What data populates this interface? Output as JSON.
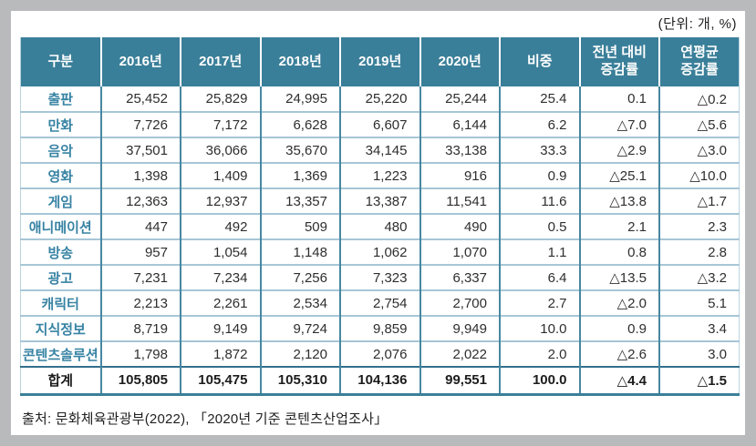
{
  "unit_label": "(단위: 개,  %)",
  "source": "출처:  문화체육관광부(2022), 「2020년  기준  콘텐츠산업조사」",
  "colors": {
    "header_bg": "#3a7f99",
    "header_text": "#ffffff",
    "label_text": "#3783a3",
    "vertical_line": "#4887a2",
    "horizontal_line": "#a6c6d6",
    "total_divider": "#336f8c",
    "bottom_border": "#3a7f99",
    "frame_gray": "#b9babc"
  },
  "table": {
    "headers": [
      "구분",
      "2016년",
      "2017년",
      "2018년",
      "2019년",
      "2020년",
      "비중",
      "전년  대비\n증감률",
      "연평균\n증감률"
    ],
    "rows": [
      {
        "label": "출판",
        "values": [
          "25,452",
          "25,829",
          "24,995",
          "25,220",
          "25,244",
          "25.4",
          "0.1",
          "△0.2"
        ],
        "is_total": false
      },
      {
        "label": "만화",
        "values": [
          "7,726",
          "7,172",
          "6,628",
          "6,607",
          "6,144",
          "6.2",
          "△7.0",
          "△5.6"
        ],
        "is_total": false
      },
      {
        "label": "음악",
        "values": [
          "37,501",
          "36,066",
          "35,670",
          "34,145",
          "33,138",
          "33.3",
          "△2.9",
          "△3.0"
        ],
        "is_total": false
      },
      {
        "label": "영화",
        "values": [
          "1,398",
          "1,409",
          "1,369",
          "1,223",
          "916",
          "0.9",
          "△25.1",
          "△10.0"
        ],
        "is_total": false
      },
      {
        "label": "게임",
        "values": [
          "12,363",
          "12,937",
          "13,357",
          "13,387",
          "11,541",
          "11.6",
          "△13.8",
          "△1.7"
        ],
        "is_total": false
      },
      {
        "label": "애니메이션",
        "values": [
          "447",
          "492",
          "509",
          "480",
          "490",
          "0.5",
          "2.1",
          "2.3"
        ],
        "is_total": false
      },
      {
        "label": "방송",
        "values": [
          "957",
          "1,054",
          "1,148",
          "1,062",
          "1,070",
          "1.1",
          "0.8",
          "2.8"
        ],
        "is_total": false
      },
      {
        "label": "광고",
        "values": [
          "7,231",
          "7,234",
          "7,256",
          "7,323",
          "6,337",
          "6.4",
          "△13.5",
          "△3.2"
        ],
        "is_total": false
      },
      {
        "label": "캐릭터",
        "values": [
          "2,213",
          "2,261",
          "2,534",
          "2,754",
          "2,700",
          "2.7",
          "△2.0",
          "5.1"
        ],
        "is_total": false
      },
      {
        "label": "지식정보",
        "values": [
          "8,719",
          "9,149",
          "9,724",
          "9,859",
          "9,949",
          "10.0",
          "0.9",
          "3.4"
        ],
        "is_total": false
      },
      {
        "label": "콘텐츠솔루션",
        "values": [
          "1,798",
          "1,872",
          "2,120",
          "2,076",
          "2,022",
          "2.0",
          "△2.6",
          "3.0"
        ],
        "is_total": false
      },
      {
        "label": "합계",
        "values": [
          "105,805",
          "105,475",
          "105,310",
          "104,136",
          "99,551",
          "100.0",
          "△4.4",
          "△1.5"
        ],
        "is_total": true
      }
    ]
  }
}
